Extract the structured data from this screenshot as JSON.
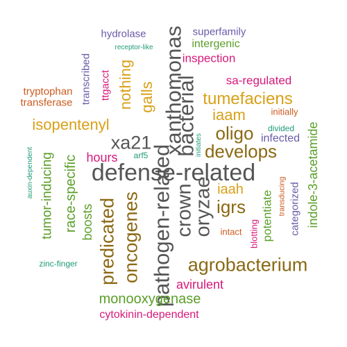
{
  "colors": {
    "gray": "#555555",
    "brown": "#8B6914",
    "gold": "#D9A018",
    "green": "#5A9E28",
    "magenta": "#D6187A",
    "purple": "#6B5BA8",
    "teal": "#1F9A78",
    "orange": "#CC5A1E"
  },
  "words": [
    {
      "text": "defense-related",
      "color": "gray",
      "orientation": "horizontal"
    },
    {
      "text": "xanthomonas",
      "color": "gray",
      "orientation": "vertical"
    },
    {
      "text": "pathogen-related",
      "color": "gray",
      "orientation": "vertical"
    },
    {
      "text": "bacterial",
      "color": "gray",
      "orientation": "vertical"
    },
    {
      "text": "crown",
      "color": "gray",
      "orientation": "vertical"
    },
    {
      "text": "oryzae",
      "color": "gray",
      "orientation": "vertical"
    },
    {
      "text": "xa21",
      "color": "gray",
      "orientation": "horizontal"
    },
    {
      "text": "agrobacterium",
      "color": "brown",
      "orientation": "horizontal"
    },
    {
      "text": "oncogenes",
      "color": "brown",
      "orientation": "vertical"
    },
    {
      "text": "predicated",
      "color": "brown",
      "orientation": "vertical"
    },
    {
      "text": "develops",
      "color": "brown",
      "orientation": "horizontal"
    },
    {
      "text": "oligo",
      "color": "brown",
      "orientation": "horizontal"
    },
    {
      "text": "igrs",
      "color": "brown",
      "orientation": "horizontal"
    },
    {
      "text": "tumefaciens",
      "color": "gold",
      "orientation": "horizontal"
    },
    {
      "text": "isopentenyl",
      "color": "gold",
      "orientation": "horizontal"
    },
    {
      "text": "iaam",
      "color": "gold",
      "orientation": "horizontal"
    },
    {
      "text": "nothing",
      "color": "gold",
      "orientation": "vertical"
    },
    {
      "text": "galls",
      "color": "gold",
      "orientation": "vertical"
    },
    {
      "text": "iaah",
      "color": "gold",
      "orientation": "horizontal"
    },
    {
      "text": "race-specific",
      "color": "green",
      "orientation": "vertical"
    },
    {
      "text": "tumor-inducing",
      "color": "green",
      "orientation": "vertical"
    },
    {
      "text": "boosts",
      "color": "green",
      "orientation": "vertical"
    },
    {
      "text": "monooxygenase",
      "color": "green",
      "orientation": "horizontal"
    },
    {
      "text": "indole-3-acetamide",
      "color": "green",
      "orientation": "vertical"
    },
    {
      "text": "potentiate",
      "color": "green",
      "orientation": "vertical"
    },
    {
      "text": "intergenic",
      "color": "green",
      "orientation": "horizontal"
    },
    {
      "text": "inspection",
      "color": "magenta",
      "orientation": "horizontal"
    },
    {
      "text": "sa-regulated",
      "color": "magenta",
      "orientation": "horizontal"
    },
    {
      "text": "hours",
      "color": "magenta",
      "orientation": "horizontal"
    },
    {
      "text": "avirulent",
      "color": "magenta",
      "orientation": "horizontal"
    },
    {
      "text": "cytokinin-dependent",
      "color": "magenta",
      "orientation": "horizontal"
    },
    {
      "text": "ttgacct",
      "color": "magenta",
      "orientation": "vertical"
    },
    {
      "text": "blotting",
      "color": "magenta",
      "orientation": "vertical"
    },
    {
      "text": "superfamily",
      "color": "purple",
      "orientation": "horizontal"
    },
    {
      "text": "hydrolase",
      "color": "purple",
      "orientation": "horizontal"
    },
    {
      "text": "transcribed",
      "color": "purple",
      "orientation": "vertical"
    },
    {
      "text": "infected",
      "color": "purple",
      "orientation": "horizontal"
    },
    {
      "text": "categorized",
      "color": "purple",
      "orientation": "vertical"
    },
    {
      "text": "receptor-like",
      "color": "teal",
      "orientation": "horizontal"
    },
    {
      "text": "divided",
      "color": "teal",
      "orientation": "horizontal"
    },
    {
      "text": "arf5",
      "color": "teal",
      "orientation": "horizontal"
    },
    {
      "text": "zinc-finger",
      "color": "teal",
      "orientation": "horizontal"
    },
    {
      "text": "auxin-dependent",
      "color": "teal",
      "orientation": "vertical"
    },
    {
      "text": "initiates",
      "color": "teal",
      "orientation": "vertical"
    },
    {
      "text": "tryptophan",
      "color": "orange",
      "orientation": "horizontal"
    },
    {
      "text": "transferase",
      "color": "orange",
      "orientation": "horizontal"
    },
    {
      "text": "initially",
      "color": "orange",
      "orientation": "horizontal"
    },
    {
      "text": "intact",
      "color": "orange",
      "orientation": "horizontal"
    },
    {
      "text": "transducing",
      "color": "orange",
      "orientation": "vertical"
    }
  ]
}
